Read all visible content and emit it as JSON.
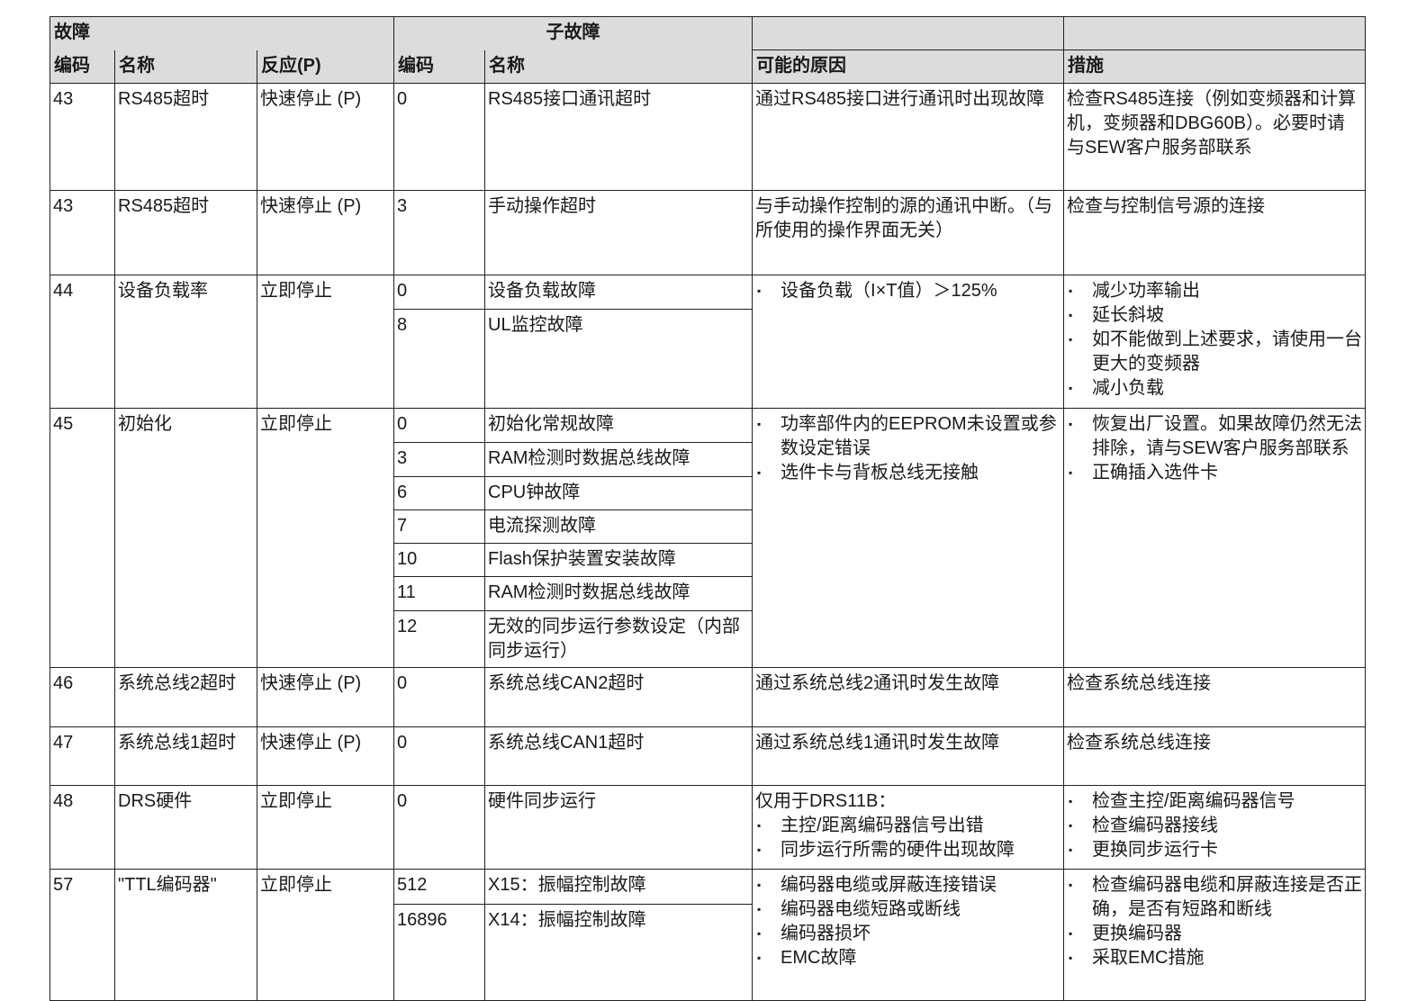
{
  "header": {
    "fault": "故障",
    "code": "编码",
    "name": "名称",
    "reaction": "反应(P)",
    "subfault": "子故障",
    "sub_code": "编码",
    "sub_name": "名称",
    "cause": "可能的原因",
    "measure": "措施"
  },
  "rows": [
    {
      "code": "43",
      "name": "RS485超时",
      "reaction": "快速停止 (P)",
      "subs": [
        {
          "code": "0",
          "name": "RS485接口通讯超时",
          "h": 119
        }
      ],
      "cause": "通过RS485接口进行通讯时出现故障",
      "measures": "检查RS485连接（例如变频器和计算机，变频器和DBG60B）。必要时请与SEW客户服务部联系"
    },
    {
      "code": "43",
      "name": "RS485超时",
      "reaction": "快速停止 (P)",
      "subs": [
        {
          "code": "3",
          "name": "手动操作超时",
          "h": 94
        }
      ],
      "cause": "与手动操作控制的源的通讯中断。（与所使用的操作界面无关）",
      "measures": "检查与控制信号源的连接"
    },
    {
      "code": "44",
      "name": "设备负载率",
      "reaction": "立即停止",
      "subs": [
        {
          "code": "0",
          "name": "设备负载故障",
          "h": 38
        },
        {
          "code": "8",
          "name": "UL监控故障",
          "h": 110
        }
      ],
      "cause_list": [
        "设备负载（I×T值）＞125%"
      ],
      "measures_list": [
        "减少功率输出",
        "延长斜坡",
        "如不能做到上述要求，请使用一台更大的变频器",
        "减小负载"
      ]
    },
    {
      "code": "45",
      "name": "初始化",
      "reaction": "立即停止",
      "subs": [
        {
          "code": "0",
          "name": "初始化常规故障",
          "h": 38
        },
        {
          "code": "3",
          "name": "RAM检测时数据总线故障",
          "h": 38
        },
        {
          "code": "6",
          "name": "CPU钟故障",
          "h": 37
        },
        {
          "code": "7",
          "name": "电流探测故障",
          "h": 37
        },
        {
          "code": "10",
          "name": "Flash保护装置安装故障",
          "h": 37
        },
        {
          "code": "11",
          "name": "RAM检测时数据总线故障",
          "h": 38
        },
        {
          "code": "12",
          "name": "无效的同步运行参数设定（内部同步运行）",
          "h": 63
        }
      ],
      "cause_list": [
        "功率部件内的EEPROM未设置或参数设定错误",
        "选件卡与背板总线无接触"
      ],
      "measures_list": [
        "恢复出厂设置。如果故障仍然无法排除，请与SEW客户服务部联系",
        "正确插入选件卡"
      ]
    },
    {
      "code": "46",
      "name": "系统总线2超时",
      "reaction": "快速停止 (P)",
      "subs": [
        {
          "code": "0",
          "name": "系统总线CAN2超时",
          "h": 66
        }
      ],
      "cause": "通过系统总线2通讯时发生故障",
      "measures": "检查系统总线连接"
    },
    {
      "code": "47",
      "name": "系统总线1超时",
      "reaction": "快速停止 (P)",
      "subs": [
        {
          "code": "0",
          "name": "系统总线CAN1超时",
          "h": 65
        }
      ],
      "cause": "通过系统总线1通讯时发生故障",
      "measures": "检查系统总线连接"
    },
    {
      "code": "48",
      "name": "DRS硬件",
      "reaction": "立即停止",
      "subs": [
        {
          "code": "0",
          "name": "硬件同步运行",
          "h": 93
        }
      ],
      "cause": "仅用于DRS11B：",
      "cause_list": [
        "主控/距离编码器信号出错",
        "同步运行所需的硬件出现故障"
      ],
      "measures_list": [
        "检查主控/距离编码器信号",
        "检查编码器接线",
        "更换同步运行卡"
      ]
    },
    {
      "code": "57",
      "name": "\"TTL编码器\"",
      "reaction": "立即停止",
      "subs": [
        {
          "code": "512",
          "name": "X15：振幅控制故障",
          "h": 39
        },
        {
          "code": "16896",
          "name": "X14：振幅控制故障",
          "h": 107
        }
      ],
      "cause_list": [
        "编码器电缆或屏蔽连接错误",
        "编码器电缆短路或断线",
        "编码器损坏",
        "EMC故障"
      ],
      "measures_list": [
        "检查编码器电缆和屏蔽连接是否正确，是否有短路和断线",
        "更换编码器",
        "采取EMC措施"
      ]
    }
  ]
}
